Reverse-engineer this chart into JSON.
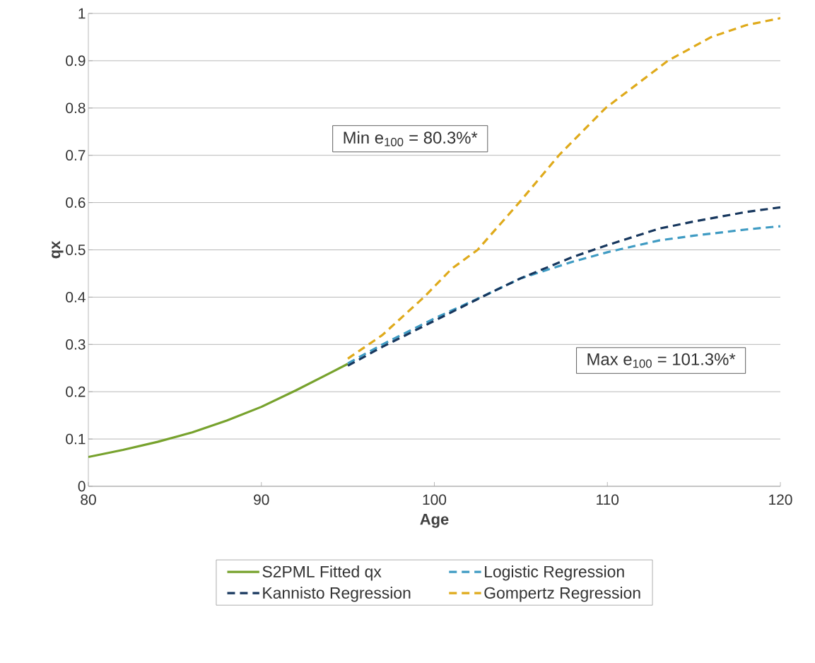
{
  "chart_data": {
    "type": "line",
    "xlabel": "Age",
    "ylabel": "qx",
    "xlim": [
      80,
      120
    ],
    "xticks": [
      80,
      90,
      100,
      110,
      120
    ],
    "ylim": [
      0,
      1
    ],
    "yticks": [
      0,
      0.1,
      0.2,
      0.3,
      0.4,
      0.5,
      0.6,
      0.7,
      0.8,
      0.9,
      1
    ],
    "grid": "y",
    "legend": "bottom",
    "marker": "none",
    "annotations": [
      "Min e$_{100}$ = 80.3%*",
      "Max e$_{100}$ = 101.3%*"
    ],
    "series": [
      {
        "name": "S2PML Fitted qx",
        "color": "#77a22d",
        "line_style": "solid",
        "x": [
          80,
          82,
          84,
          86,
          88,
          90,
          92,
          94,
          95
        ],
        "values": [
          0.062,
          0.077,
          0.094,
          0.114,
          0.139,
          0.168,
          0.203,
          0.24,
          0.259
        ]
      },
      {
        "name": "Logistic Regression",
        "color": "#3f9bc3",
        "line_style": "dashed",
        "x": [
          95,
          97,
          100,
          103,
          105,
          108,
          110,
          113,
          115,
          118,
          120
        ],
        "values": [
          0.26,
          0.3,
          0.355,
          0.405,
          0.44,
          0.475,
          0.495,
          0.52,
          0.53,
          0.543,
          0.55
        ]
      },
      {
        "name": "Kannisto Regression",
        "color": "#17375e",
        "line_style": "dashed",
        "x": [
          95,
          97,
          100,
          103,
          105,
          108,
          110,
          113,
          115,
          118,
          120
        ],
        "values": [
          0.255,
          0.295,
          0.35,
          0.405,
          0.44,
          0.485,
          0.51,
          0.545,
          0.56,
          0.58,
          0.59
        ]
      },
      {
        "name": "Gompertz Regression",
        "color": "#dfaa1b",
        "line_style": "dashed",
        "x": [
          95,
          97,
          99.4,
          101,
          102.5,
          104.9,
          107.2,
          109.9,
          113.5,
          116,
          118,
          120
        ],
        "values": [
          0.27,
          0.32,
          0.4,
          0.46,
          0.5,
          0.6,
          0.7,
          0.8,
          0.9,
          0.95,
          0.975,
          0.99
        ]
      }
    ]
  }
}
